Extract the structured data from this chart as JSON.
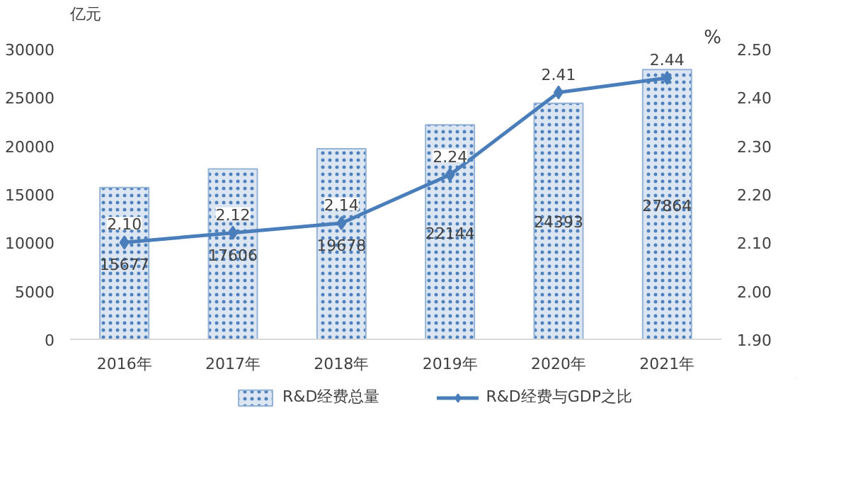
{
  "chart_data": {
    "type": "bar",
    "ylabel": "亿元",
    "y2label": "%",
    "categories": [
      "2016年",
      "2017年",
      "2018年",
      "2019年",
      "2020年",
      "2021年"
    ],
    "series": [
      {
        "name": "R&D经费总量",
        "color": "#dce6f2",
        "values": [
          15677,
          17606,
          19678,
          22144,
          24393,
          27864
        ],
        "value_labels": [
          "15677",
          "17606",
          "19678",
          "22144",
          "24393",
          "27864"
        ]
      },
      {
        "name": "R&D经费与GDP之比",
        "type": "line",
        "axis": "y2",
        "color": "#4a7ebb",
        "marker": "diamond",
        "values": [
          2.1,
          2.12,
          2.14,
          2.24,
          2.41,
          2.44
        ],
        "value_labels": [
          "2.10",
          "2.12",
          "2.14",
          "2.24",
          "2.41",
          "2.44"
        ]
      }
    ],
    "ylim": [
      0,
      30000
    ],
    "yticks": [
      0,
      5000,
      10000,
      15000,
      20000,
      25000,
      30000
    ],
    "y2lim": [
      1.9,
      2.5
    ],
    "y2ticks": [
      {
        "value": 1.9,
        "label": "1.90"
      },
      {
        "value": 2.0,
        "label": "2.00"
      },
      {
        "value": 2.1,
        "label": "2.10"
      },
      {
        "value": 2.2,
        "label": "2.20"
      },
      {
        "value": 2.3,
        "label": "2.30"
      },
      {
        "value": 2.4,
        "label": "2.40"
      },
      {
        "value": 2.5,
        "label": "2.50"
      }
    ],
    "grid": false,
    "legend": "bottom"
  }
}
